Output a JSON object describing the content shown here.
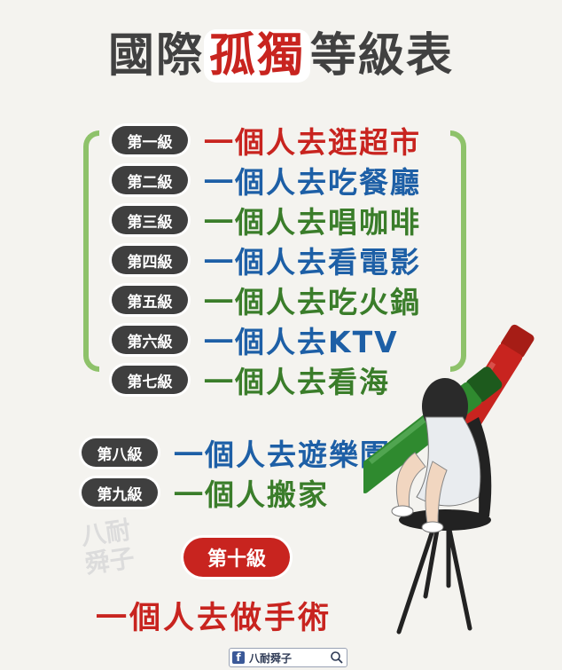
{
  "title": {
    "part1": "國際",
    "highlight": "孤獨",
    "part2": "等級表"
  },
  "levels": [
    {
      "badge": "第一級",
      "text": "一個人去逛超市",
      "color": "red"
    },
    {
      "badge": "第二級",
      "text": "一個人去吃餐廳",
      "color": "blue"
    },
    {
      "badge": "第三級",
      "text": "一個人去唱咖啡",
      "color": "green"
    },
    {
      "badge": "第四級",
      "text": "一個人去看電影",
      "color": "blue"
    },
    {
      "badge": "第五級",
      "text": "一個人去吃火鍋",
      "color": "green"
    },
    {
      "badge": "第六級",
      "text": "一個人去KTV",
      "color": "blue"
    },
    {
      "badge": "第七級",
      "text": "一個人去看海",
      "color": "green"
    },
    {
      "badge": "第八級",
      "text": "一個人去遊樂園",
      "color": "blue"
    },
    {
      "badge": "第九級",
      "text": "一個人搬家",
      "color": "green"
    }
  ],
  "final_level": {
    "badge": "第十級",
    "text": "一個人去做手術"
  },
  "watermark": {
    "line1": "八耐",
    "line2": "舜子"
  },
  "footer": {
    "icon": "facebook-icon",
    "name": "八耐舜子",
    "search_icon": "search-icon"
  },
  "colors": {
    "red": "#c8241f",
    "blue": "#1d5fa6",
    "green": "#3a7d2a",
    "badge": "#3f3f3f",
    "bracket": "#8ec26a"
  }
}
